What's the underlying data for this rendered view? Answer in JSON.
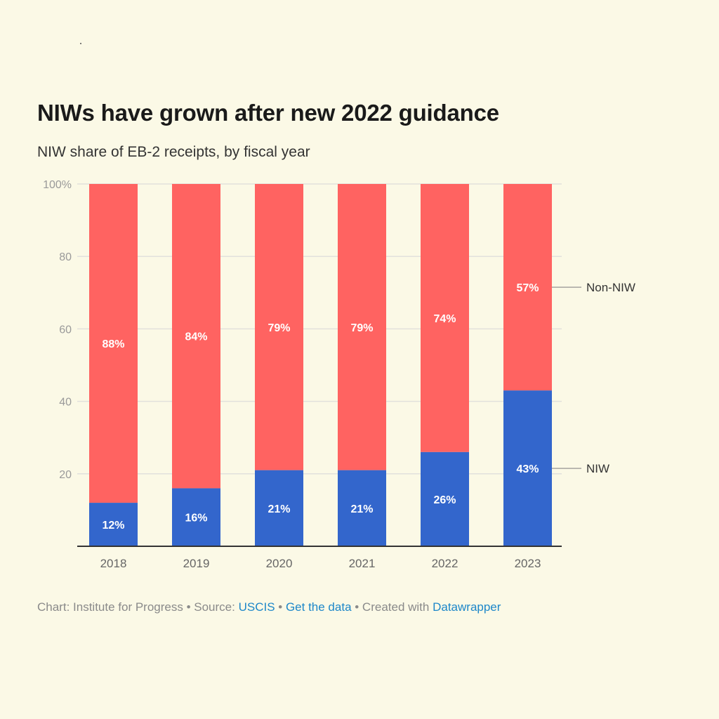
{
  "title": "NIWs have grown after new 2022 guidance",
  "subtitle": "NIW share of EB-2 receipts, by fiscal year",
  "footer": {
    "chart_prefix": "Chart: Institute for Progress • Source: ",
    "source_link": "USCIS",
    "separator1": " • ",
    "data_link": "Get the data",
    "separator2": " • Created with ",
    "tool_link": "Datawrapper"
  },
  "colors": {
    "background": "#fbf9e6",
    "niw": "#3366cc",
    "non_niw": "#ff6361",
    "link": "#1d87c9"
  },
  "chart_data": {
    "type": "bar",
    "stacked": true,
    "categories": [
      "2018",
      "2019",
      "2020",
      "2021",
      "2022",
      "2023"
    ],
    "series": [
      {
        "name": "NIW",
        "values": [
          12,
          16,
          21,
          21,
          26,
          43
        ],
        "labels": [
          "12%",
          "16%",
          "21%",
          "21%",
          "26%",
          "43%"
        ],
        "color": "#3366cc"
      },
      {
        "name": "Non-NIW",
        "values": [
          88,
          84,
          79,
          79,
          74,
          57
        ],
        "labels": [
          "88%",
          "84%",
          "79%",
          "79%",
          "74%",
          "57%"
        ],
        "color": "#ff6361"
      }
    ],
    "ylim": [
      0,
      100
    ],
    "yticks": [
      20,
      40,
      60,
      80,
      100
    ],
    "ytick_labels": [
      "20",
      "40",
      "60",
      "80",
      "100%"
    ],
    "grid": true,
    "legend": "right, inline labels",
    "xlabel": "",
    "ylabel": ""
  }
}
